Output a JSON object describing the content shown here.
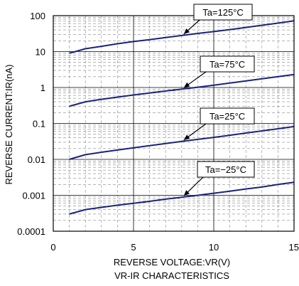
{
  "chart_data": {
    "type": "line",
    "title": "VR-IR CHARACTERISTICS",
    "xlabel": "REVERSE VOLTAGE:VR(V)",
    "ylabel": "REVERSE CURRENT:IR(nA)",
    "xlim": [
      0,
      15
    ],
    "ylim": [
      0.0001,
      100
    ],
    "yscale": "log",
    "grid": true,
    "x_ticks": [
      "0",
      "5",
      "10",
      "15"
    ],
    "y_ticks": [
      "100",
      "10",
      "1",
      "0.1",
      "0.01",
      "0.001",
      "0.0001"
    ],
    "series": [
      {
        "name": "Ta=125°C",
        "x": [
          1,
          2,
          3,
          4,
          5,
          6,
          7,
          8,
          9,
          10,
          11,
          12,
          13,
          14,
          15
        ],
        "y": [
          9,
          12,
          14,
          16.5,
          19,
          21.5,
          24.5,
          28,
          32,
          36,
          41,
          47,
          54,
          62,
          72
        ]
      },
      {
        "name": "Ta=75°C",
        "x": [
          1,
          2,
          3,
          4,
          5,
          6,
          7,
          8,
          9,
          10,
          11,
          12,
          13,
          14,
          15
        ],
        "y": [
          0.3,
          0.4,
          0.47,
          0.54,
          0.62,
          0.7,
          0.8,
          0.9,
          1.02,
          1.16,
          1.33,
          1.52,
          1.75,
          2.0,
          2.3
        ]
      },
      {
        "name": "Ta=25°C",
        "x": [
          1,
          2,
          3,
          4,
          5,
          6,
          7,
          8,
          9,
          10,
          11,
          12,
          13,
          14,
          15
        ],
        "y": [
          0.01,
          0.0135,
          0.0158,
          0.0182,
          0.021,
          0.024,
          0.0275,
          0.0315,
          0.036,
          0.041,
          0.047,
          0.054,
          0.062,
          0.071,
          0.082
        ]
      },
      {
        "name": "Ta=-25°C",
        "x": [
          1,
          2,
          3,
          4,
          5,
          6,
          7,
          8,
          9,
          10,
          11,
          12,
          13,
          14,
          15
        ],
        "y": [
          0.0003,
          0.0004,
          0.00046,
          0.00053,
          0.0006,
          0.00068,
          0.00078,
          0.00088,
          0.001,
          0.00114,
          0.0013,
          0.0015,
          0.0017,
          0.002,
          0.0023
        ]
      }
    ],
    "annotations": [
      {
        "text": "Ta=125°C",
        "points_to": {
          "x": 8,
          "y": 28
        }
      },
      {
        "text": "Ta=75°C",
        "points_to": {
          "x": 8,
          "y": 0.9
        }
      },
      {
        "text": "Ta=25°C",
        "points_to": {
          "x": 8,
          "y": 0.0315
        }
      },
      {
        "text": "Ta=−25°C",
        "points_to": {
          "x": 8,
          "y": 0.00088
        }
      }
    ],
    "colors": {
      "line": "#1a237e",
      "grid": "#888888",
      "axis": "#000000"
    }
  }
}
